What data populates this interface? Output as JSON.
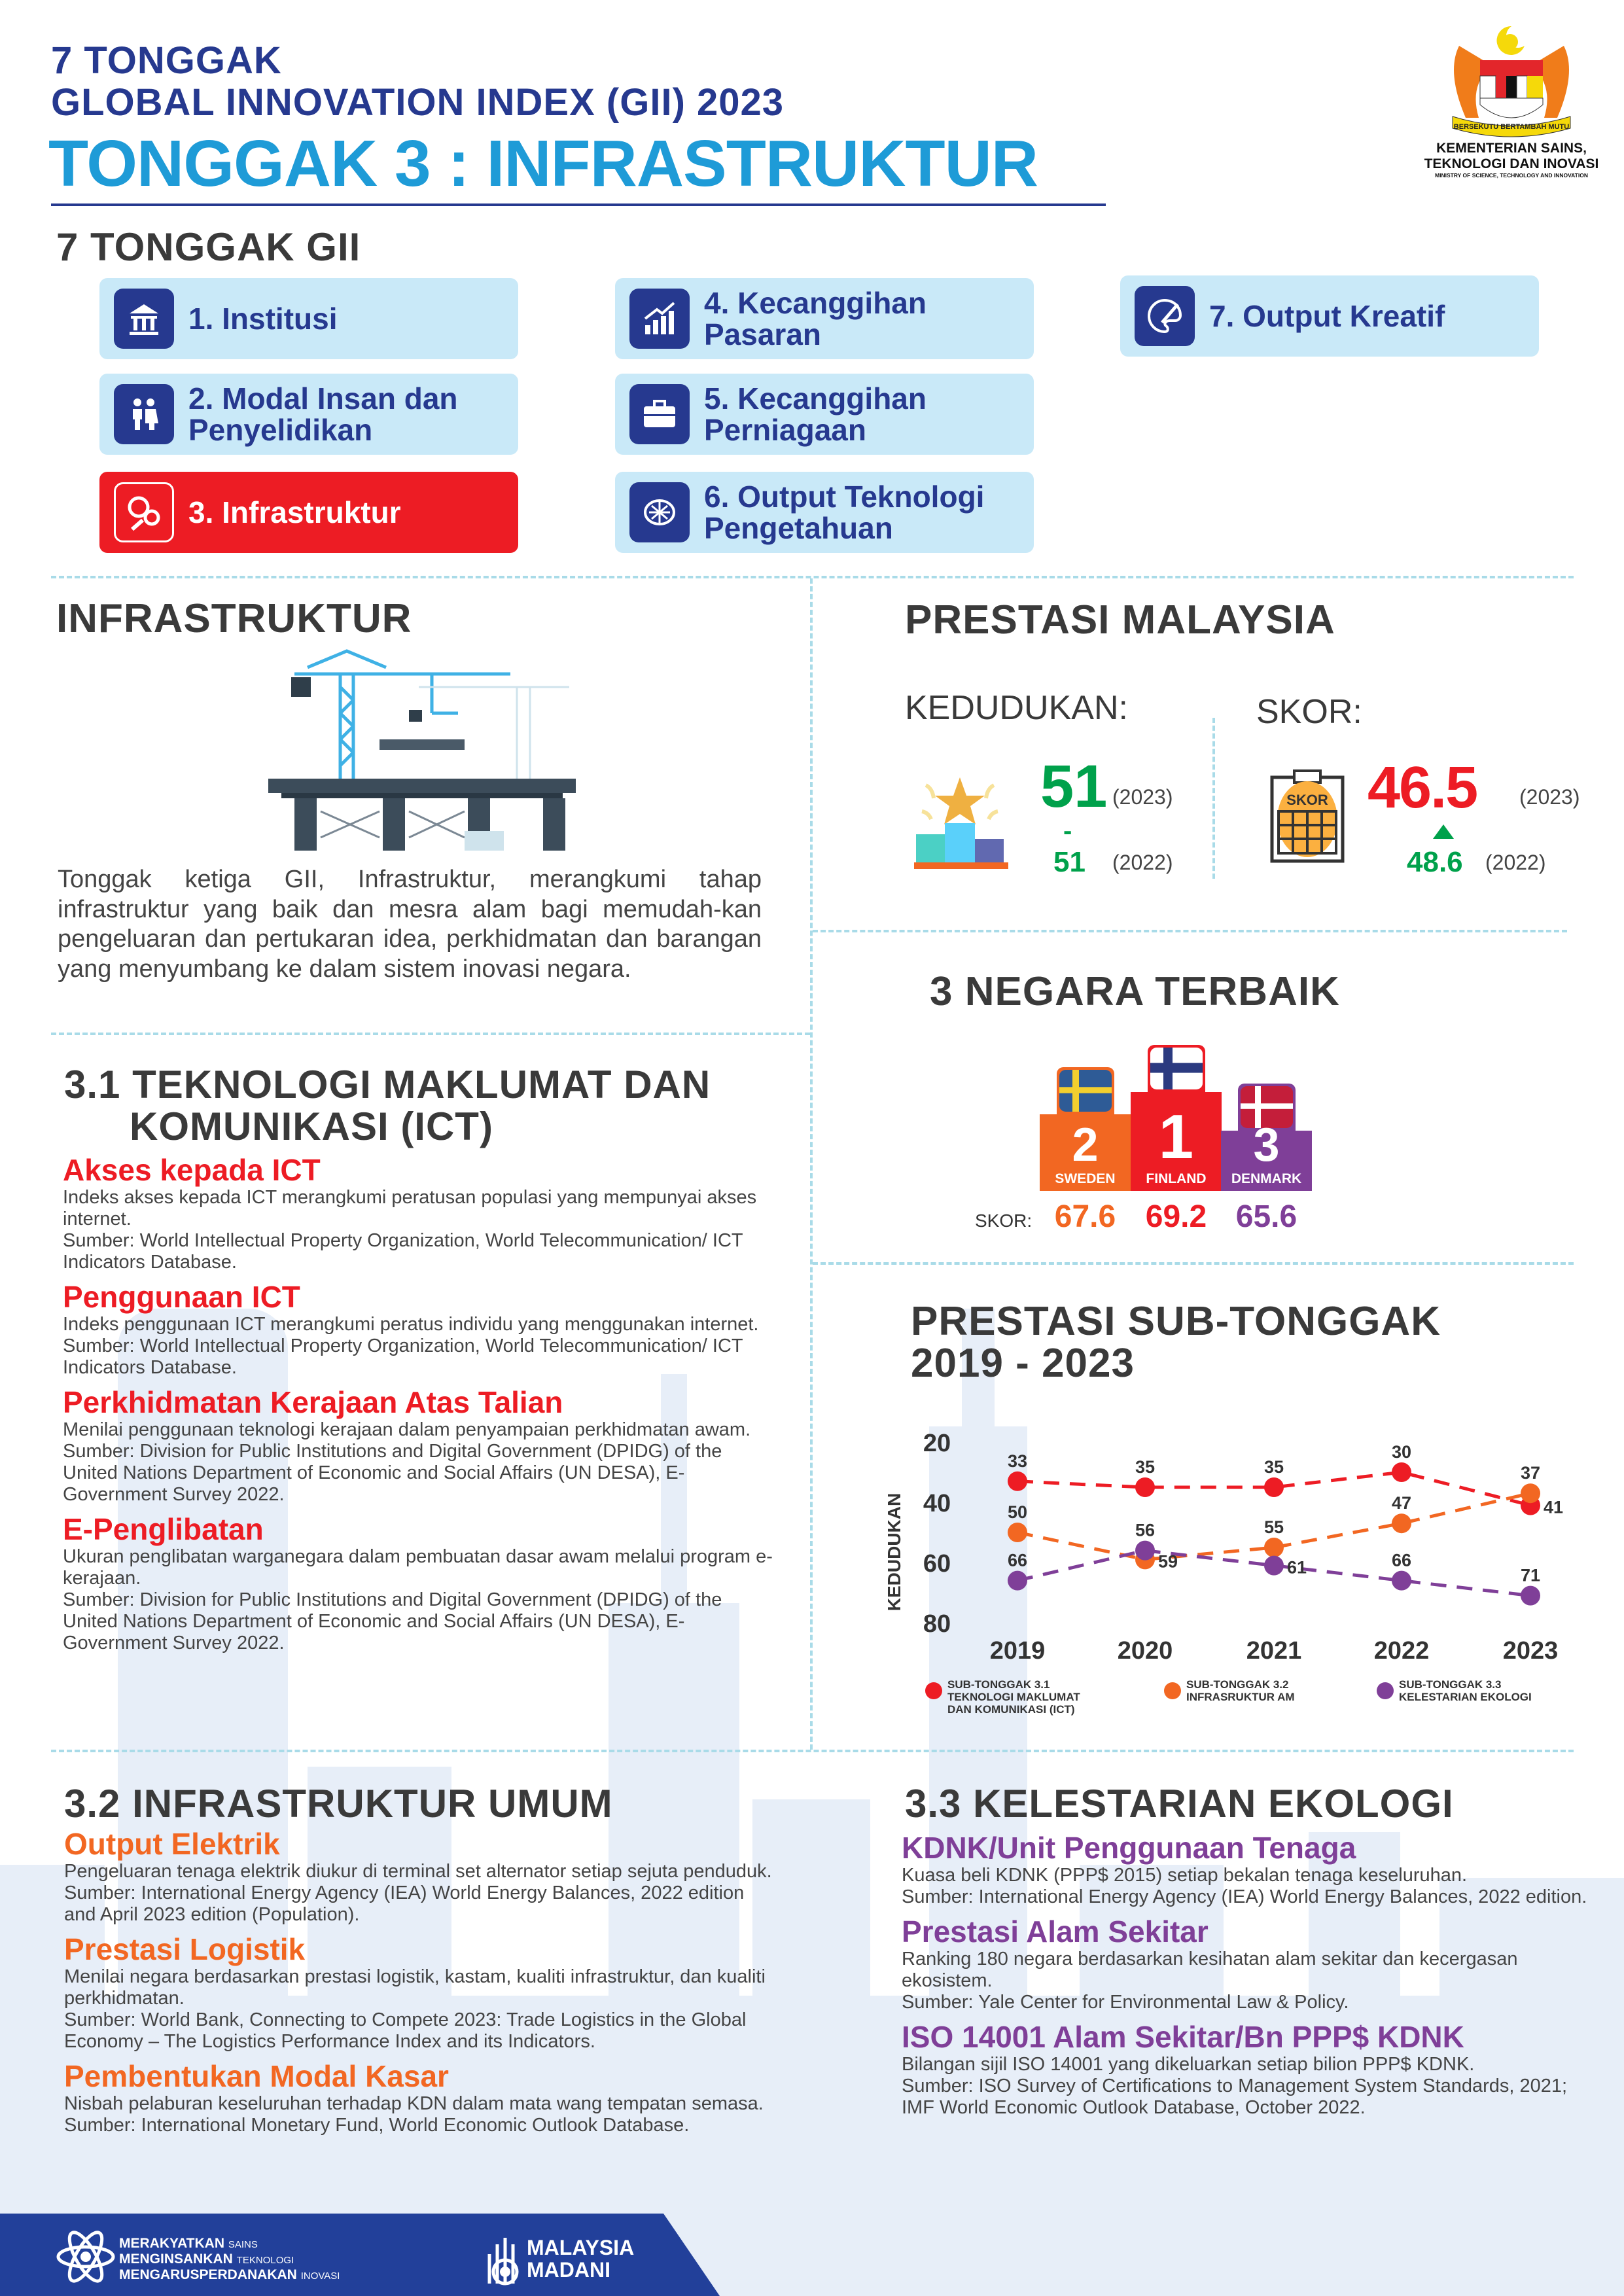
{
  "header": {
    "line1": "7 TONGGAK",
    "line2": "GLOBAL INNOVATION INDEX (GII) 2023",
    "title": "TONGGAK 3 : INFRASTRUKTUR",
    "ministry_line1": "KEMENTERIAN SAINS,",
    "ministry_line2": "TEKNOLOGI DAN INOVASI",
    "ministry_en": "MINISTRY OF SCIENCE, TECHNOLOGY AND INNOVATION",
    "crest_motto": "BERSEKUTU BERTAMBAH MUTU"
  },
  "pillars": {
    "heading": "7 TONGGAK GII",
    "items": [
      {
        "label": "1. Institusi",
        "icon": "institution-icon",
        "active": false
      },
      {
        "label": "2. Modal Insan dan\n    Penyelidikan",
        "icon": "people-icon",
        "active": false
      },
      {
        "label": "3. Infrastruktur",
        "icon": "gears-icon",
        "active": true
      },
      {
        "label": "4. Kecanggihan\n    Pasaran",
        "icon": "growth-chart-icon",
        "active": false
      },
      {
        "label": "5. Kecanggihan\n    Perniagaan",
        "icon": "briefcase-icon",
        "active": false
      },
      {
        "label": "6. Output Teknologi\n    Pengetahuan",
        "icon": "brain-network-icon",
        "active": false
      },
      {
        "label": "7. Output Kreatif",
        "icon": "palette-icon",
        "active": false
      }
    ]
  },
  "infra": {
    "heading": "INFRASTRUKTUR",
    "intro": "Tonggak ketiga GII, Infrastruktur, merangkumi tahap infrastruktur yang baik dan mesra alam bagi memudah-kan pengeluaran dan pertukaran idea, perkhidmatan dan barangan yang menyumbang ke dalam sistem inovasi negara."
  },
  "performance": {
    "heading": "PRESTASI MALAYSIA",
    "rank_label": "KEDUDUKAN:",
    "rank_2023": "51",
    "rank_2023_year": "(2023)",
    "rank_change": "-",
    "rank_2022": "51",
    "rank_2022_year": "(2022)",
    "score_label": "SKOR:",
    "score_icon_text": "SKOR",
    "score_2023": "46.5",
    "score_2023_year": "(2023)",
    "score_2022": "48.6",
    "score_2022_year": "(2022)",
    "colors": {
      "green": "#00a14b",
      "red": "#ed1c24"
    }
  },
  "top3": {
    "heading": "3 NEGARA TERBAIK",
    "score_label": "SKOR:",
    "countries": [
      {
        "rank": "2",
        "name": "SWEDEN",
        "score": "67.6",
        "color": "#f26722"
      },
      {
        "rank": "1",
        "name": "FINLAND",
        "score": "69.2",
        "color": "#ed1c24"
      },
      {
        "rank": "3",
        "name": "DENMARK",
        "score": "65.6",
        "color": "#7f3f98"
      }
    ]
  },
  "sub_pillar": {
    "heading_line1": "PRESTASI SUB-TONGGAK",
    "heading_line2": "2019 - 2023"
  },
  "chart_data": {
    "type": "line",
    "ylabel": "KEDUDUKAN",
    "x": [
      "2019",
      "2020",
      "2021",
      "2022",
      "2023"
    ],
    "yticks": [
      20,
      40,
      60,
      80
    ],
    "ylim": [
      20,
      80
    ],
    "y_inverted": true,
    "grid": false,
    "legend_position": "bottom",
    "series": [
      {
        "name": "SUB-TONGGAK 3.1\nTEKNOLOGI MAKLUMAT\nDAN KOMUNIKASI (ICT)",
        "color": "#ed1c24",
        "values": [
          33,
          35,
          35,
          30,
          41
        ]
      },
      {
        "name": "SUB-TONGGAK 3.2\nINFRASRUKTUR AM",
        "color": "#f26722",
        "values": [
          50,
          59,
          55,
          47,
          37
        ]
      },
      {
        "name": "SUB-TONGGAK 3.3\nKELESTARIAN EKOLOGI",
        "color": "#7f3f98",
        "values": [
          66,
          56,
          61,
          66,
          71
        ]
      }
    ]
  },
  "ict": {
    "heading_line1": "3.1 TEKNOLOGI MAKLUMAT DAN",
    "heading_line2": "KOMUNIKASI (ICT)",
    "color": "#ed1c24",
    "items": [
      {
        "title": "Akses kepada ICT",
        "body": "Indeks akses kepada ICT merangkumi peratusan populasi yang mempunyai akses internet.",
        "source": "Sumber: World Intellectual Property Organization, World Telecommunication/ ICT Indicators Database."
      },
      {
        "title": "Penggunaan ICT",
        "body": "Indeks penggunaan ICT merangkumi peratus individu yang menggunakan internet.",
        "source": "Sumber: World Intellectual Property Organization, World Telecommunication/ ICT Indicators Database."
      },
      {
        "title": "Perkhidmatan Kerajaan Atas Talian",
        "body": "Menilai penggunaan teknologi kerajaan dalam penyampaian perkhidmatan awam.",
        "source": "Sumber: Division for Public Institutions and Digital Government (DPIDG) of the United Nations Department of Economic and Social Affairs (UN DESA), E-Government Survey 2022."
      },
      {
        "title": "E-Penglibatan",
        "body": "Ukuran penglibatan warganegara dalam pembuatan dasar awam melalui program e-kerajaan.",
        "source": "Sumber: Division for Public Institutions and Digital Government (DPIDG) of the United Nations Department of Economic and Social Affairs (UN DESA), E-Government Survey 2022."
      }
    ]
  },
  "general": {
    "heading": "3.2  INFRASTRUKTUR UMUM",
    "color": "#f26722",
    "items": [
      {
        "title": "Output Elektrik",
        "body": "Pengeluaran tenaga elektrik diukur di terminal set alternator setiap sejuta penduduk.",
        "source": "Sumber: International Energy Agency (IEA) World Energy Balances, 2022 edition and April 2023 edition (Population)."
      },
      {
        "title": "Prestasi Logistik",
        "body": "Menilai negara berdasarkan prestasi logistik, kastam, kualiti infrastruktur, dan kualiti perkhidmatan.",
        "source": "Sumber:  World Bank, Connecting to Compete 2023: Trade Logistics in the Global Economy – The Logistics Performance Index and its Indicators."
      },
      {
        "title": "Pembentukan Modal Kasar",
        "body": "Nisbah pelaburan keseluruhan terhadap KDN dalam mata wang tempatan semasa.",
        "source": "Sumber:  International Monetary Fund, World Economic Outlook Database."
      }
    ]
  },
  "eco": {
    "heading": "3.3 KELESTARIAN EKOLOGI",
    "color": "#7f3f98",
    "items": [
      {
        "title": "KDNK/Unit Penggunaan Tenaga",
        "body": "Kuasa beli KDNK (PPP$ 2015) setiap bekalan tenaga keseluruhan.",
        "source": "Sumber:  International Energy Agency (IEA) World Energy Balances, 2022 edition."
      },
      {
        "title": "Prestasi Alam Sekitar",
        "body": "Ranking 180 negara berdasarkan kesihatan alam sekitar dan kecergasan ekosistem.",
        "source": "Sumber: Yale Center for Environmental Law & Policy."
      },
      {
        "title": "ISO 14001 Alam Sekitar/Bn PPP$ KDNK",
        "body": "Bilangan sijil ISO 14001 yang dikeluarkan setiap bilion PPP$ KDNK.",
        "source": "Sumber: ISO Survey of Certifications to Management System Standards, 2021; IMF World Economic Outlook Database, October 2022."
      }
    ]
  },
  "footer": {
    "tagline": [
      {
        "main": "MERAKYATKAN",
        "sub": "SAINS"
      },
      {
        "main": "MENGINSANKAN",
        "sub": "TEKNOLOGI"
      },
      {
        "main": "MENGARUSPERDANAKAN",
        "sub": "INOVASI"
      }
    ],
    "brand_line1": "MALAYSIA",
    "brand_line2": "MADANI",
    "color": "#22409a"
  }
}
